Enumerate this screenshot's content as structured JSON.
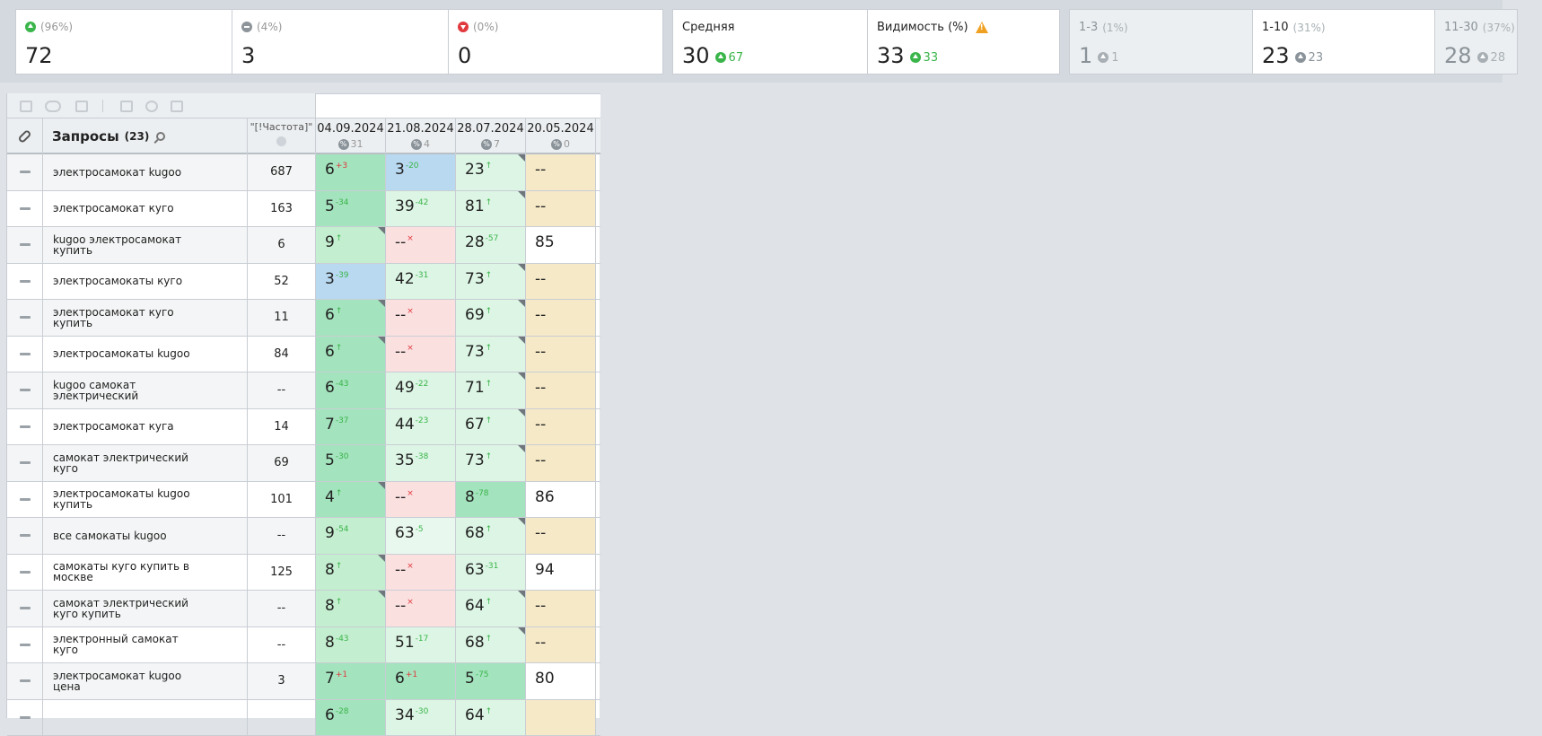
{
  "stats": {
    "up": {
      "pct": "(96%)",
      "value": "72"
    },
    "same": {
      "pct": "(4%)",
      "value": "3"
    },
    "down": {
      "pct": "(0%)",
      "value": "0"
    },
    "average": {
      "label": "Средняя",
      "value": "30",
      "delta": "67"
    },
    "visibility": {
      "label": "Видимость (%)",
      "value": "33",
      "delta": "33"
    },
    "top3": {
      "label": "1-3",
      "pct": "(1%)",
      "value": "1",
      "delta": "1"
    },
    "top10": {
      "label": "1-10",
      "pct": "(31%)",
      "value": "23",
      "delta": "23"
    },
    "top30": {
      "label": "11-30",
      "pct": "(37%)",
      "value": "28",
      "delta": "28"
    }
  },
  "table": {
    "queries_label": "Запросы",
    "queries_count": "(23)",
    "freq_label": "\"[!Частота]\"",
    "dates": [
      {
        "date": "04.09.2024",
        "count": "31"
      },
      {
        "date": "21.08.2024",
        "count": "4"
      },
      {
        "date": "28.07.2024",
        "count": "7"
      },
      {
        "date": "20.05.2024",
        "count": "0"
      }
    ],
    "rows": [
      {
        "q": "электросамокат kugoo",
        "f": "687",
        "p": [
          {
            "v": "6",
            "d": "+3",
            "dc": "r",
            "bg": "bg-green3"
          },
          {
            "v": "3",
            "d": "-20",
            "dc": "g",
            "bg": "bg-blue"
          },
          {
            "v": "23",
            "d": "↑",
            "dc": "g",
            "bg": "bg-green1",
            "k": 1
          },
          {
            "v": "--",
            "d": "",
            "dc": "g",
            "bg": "bg-sand"
          }
        ]
      },
      {
        "q": "электросамокат куго",
        "f": "163",
        "p": [
          {
            "v": "5",
            "d": "-34",
            "dc": "g",
            "bg": "bg-green3"
          },
          {
            "v": "39",
            "d": "-42",
            "dc": "g",
            "bg": "bg-green1"
          },
          {
            "v": "81",
            "d": "↑",
            "dc": "g",
            "bg": "bg-green1",
            "k": 1
          },
          {
            "v": "--",
            "d": "",
            "dc": "g",
            "bg": "bg-sand"
          }
        ]
      },
      {
        "q": "kugoo электросамокат купить",
        "f": "6",
        "p": [
          {
            "v": "9",
            "d": "↑",
            "dc": "g",
            "bg": "bg-green2",
            "k": 1
          },
          {
            "v": "--",
            "d": "×",
            "dc": "r",
            "bg": "bg-pink"
          },
          {
            "v": "28",
            "d": "-57",
            "dc": "g",
            "bg": "bg-green1"
          },
          {
            "v": "85",
            "d": "",
            "dc": "g",
            "bg": "bg-white"
          }
        ]
      },
      {
        "q": "электросамокаты куго",
        "f": "52",
        "p": [
          {
            "v": "3",
            "d": "-39",
            "dc": "g",
            "bg": "bg-blue"
          },
          {
            "v": "42",
            "d": "-31",
            "dc": "g",
            "bg": "bg-green1"
          },
          {
            "v": "73",
            "d": "↑",
            "dc": "g",
            "bg": "bg-green1",
            "k": 1
          },
          {
            "v": "--",
            "d": "",
            "dc": "g",
            "bg": "bg-sand"
          }
        ]
      },
      {
        "q": "электросамокат куго купить",
        "f": "11",
        "p": [
          {
            "v": "6",
            "d": "↑",
            "dc": "g",
            "bg": "bg-green3",
            "k": 1
          },
          {
            "v": "--",
            "d": "×",
            "dc": "r",
            "bg": "bg-pink"
          },
          {
            "v": "69",
            "d": "↑",
            "dc": "g",
            "bg": "bg-green1",
            "k": 1
          },
          {
            "v": "--",
            "d": "",
            "dc": "g",
            "bg": "bg-sand"
          }
        ]
      },
      {
        "q": "электросамокаты kugoo",
        "f": "84",
        "p": [
          {
            "v": "6",
            "d": "↑",
            "dc": "g",
            "bg": "bg-green3",
            "k": 1
          },
          {
            "v": "--",
            "d": "×",
            "dc": "r",
            "bg": "bg-pink"
          },
          {
            "v": "73",
            "d": "↑",
            "dc": "g",
            "bg": "bg-green1",
            "k": 1
          },
          {
            "v": "--",
            "d": "",
            "dc": "g",
            "bg": "bg-sand"
          }
        ]
      },
      {
        "q": "kugoo самокат электрический",
        "f": "--",
        "p": [
          {
            "v": "6",
            "d": "-43",
            "dc": "g",
            "bg": "bg-green3"
          },
          {
            "v": "49",
            "d": "-22",
            "dc": "g",
            "bg": "bg-green1"
          },
          {
            "v": "71",
            "d": "↑",
            "dc": "g",
            "bg": "bg-green1",
            "k": 1
          },
          {
            "v": "--",
            "d": "",
            "dc": "g",
            "bg": "bg-sand"
          }
        ]
      },
      {
        "q": "электросамокат куга",
        "f": "14",
        "p": [
          {
            "v": "7",
            "d": "-37",
            "dc": "g",
            "bg": "bg-green3"
          },
          {
            "v": "44",
            "d": "-23",
            "dc": "g",
            "bg": "bg-green1"
          },
          {
            "v": "67",
            "d": "↑",
            "dc": "g",
            "bg": "bg-green1",
            "k": 1
          },
          {
            "v": "--",
            "d": "",
            "dc": "g",
            "bg": "bg-sand"
          }
        ]
      },
      {
        "q": "самокат электрический куго",
        "f": "69",
        "p": [
          {
            "v": "5",
            "d": "-30",
            "dc": "g",
            "bg": "bg-green3"
          },
          {
            "v": "35",
            "d": "-38",
            "dc": "g",
            "bg": "bg-green1"
          },
          {
            "v": "73",
            "d": "↑",
            "dc": "g",
            "bg": "bg-green1",
            "k": 1
          },
          {
            "v": "--",
            "d": "",
            "dc": "g",
            "bg": "bg-sand"
          }
        ]
      },
      {
        "q": "электросамокаты kugoo купить",
        "f": "101",
        "p": [
          {
            "v": "4",
            "d": "↑",
            "dc": "g",
            "bg": "bg-green3",
            "k": 1
          },
          {
            "v": "--",
            "d": "×",
            "dc": "r",
            "bg": "bg-pink"
          },
          {
            "v": "8",
            "d": "-78",
            "dc": "g",
            "bg": "bg-green3"
          },
          {
            "v": "86",
            "d": "",
            "dc": "g",
            "bg": "bg-white"
          }
        ]
      },
      {
        "q": "все самокаты kugoo",
        "f": "--",
        "p": [
          {
            "v": "9",
            "d": "-54",
            "dc": "g",
            "bg": "bg-green2"
          },
          {
            "v": "63",
            "d": "-5",
            "dc": "g",
            "bg": "bg-green0"
          },
          {
            "v": "68",
            "d": "↑",
            "dc": "g",
            "bg": "bg-green1",
            "k": 1
          },
          {
            "v": "--",
            "d": "",
            "dc": "g",
            "bg": "bg-sand"
          }
        ]
      },
      {
        "q": "самокаты куго купить в москве",
        "f": "125",
        "p": [
          {
            "v": "8",
            "d": "↑",
            "dc": "g",
            "bg": "bg-green2",
            "k": 1
          },
          {
            "v": "--",
            "d": "×",
            "dc": "r",
            "bg": "bg-pink"
          },
          {
            "v": "63",
            "d": "-31",
            "dc": "g",
            "bg": "bg-green1"
          },
          {
            "v": "94",
            "d": "",
            "dc": "g",
            "bg": "bg-white"
          }
        ]
      },
      {
        "q": "самокат электрический куго купить",
        "f": "--",
        "p": [
          {
            "v": "8",
            "d": "↑",
            "dc": "g",
            "bg": "bg-green2",
            "k": 1
          },
          {
            "v": "--",
            "d": "×",
            "dc": "r",
            "bg": "bg-pink"
          },
          {
            "v": "64",
            "d": "↑",
            "dc": "g",
            "bg": "bg-green1",
            "k": 1
          },
          {
            "v": "--",
            "d": "",
            "dc": "g",
            "bg": "bg-sand"
          }
        ]
      },
      {
        "q": "электронный самокат куго",
        "f": "--",
        "p": [
          {
            "v": "8",
            "d": "-43",
            "dc": "g",
            "bg": "bg-green2"
          },
          {
            "v": "51",
            "d": "-17",
            "dc": "g",
            "bg": "bg-green1"
          },
          {
            "v": "68",
            "d": "↑",
            "dc": "g",
            "bg": "bg-green1",
            "k": 1
          },
          {
            "v": "--",
            "d": "",
            "dc": "g",
            "bg": "bg-sand"
          }
        ]
      },
      {
        "q": "электросамокат kugoo цена",
        "f": "3",
        "p": [
          {
            "v": "7",
            "d": "+1",
            "dc": "r",
            "bg": "bg-green3"
          },
          {
            "v": "6",
            "d": "+1",
            "dc": "r",
            "bg": "bg-green3"
          },
          {
            "v": "5",
            "d": "-75",
            "dc": "g",
            "bg": "bg-green3"
          },
          {
            "v": "80",
            "d": "",
            "dc": "g",
            "bg": "bg-white"
          }
        ]
      },
      {
        "q": "",
        "f": "",
        "p": [
          {
            "v": "6",
            "d": "-28",
            "dc": "g",
            "bg": "bg-green3"
          },
          {
            "v": "34",
            "d": "-30",
            "dc": "g",
            "bg": "bg-green1"
          },
          {
            "v": "64",
            "d": "↑",
            "dc": "g",
            "bg": "bg-green1"
          },
          {
            "v": "",
            "d": "",
            "dc": "g",
            "bg": "bg-sand"
          }
        ]
      }
    ]
  }
}
